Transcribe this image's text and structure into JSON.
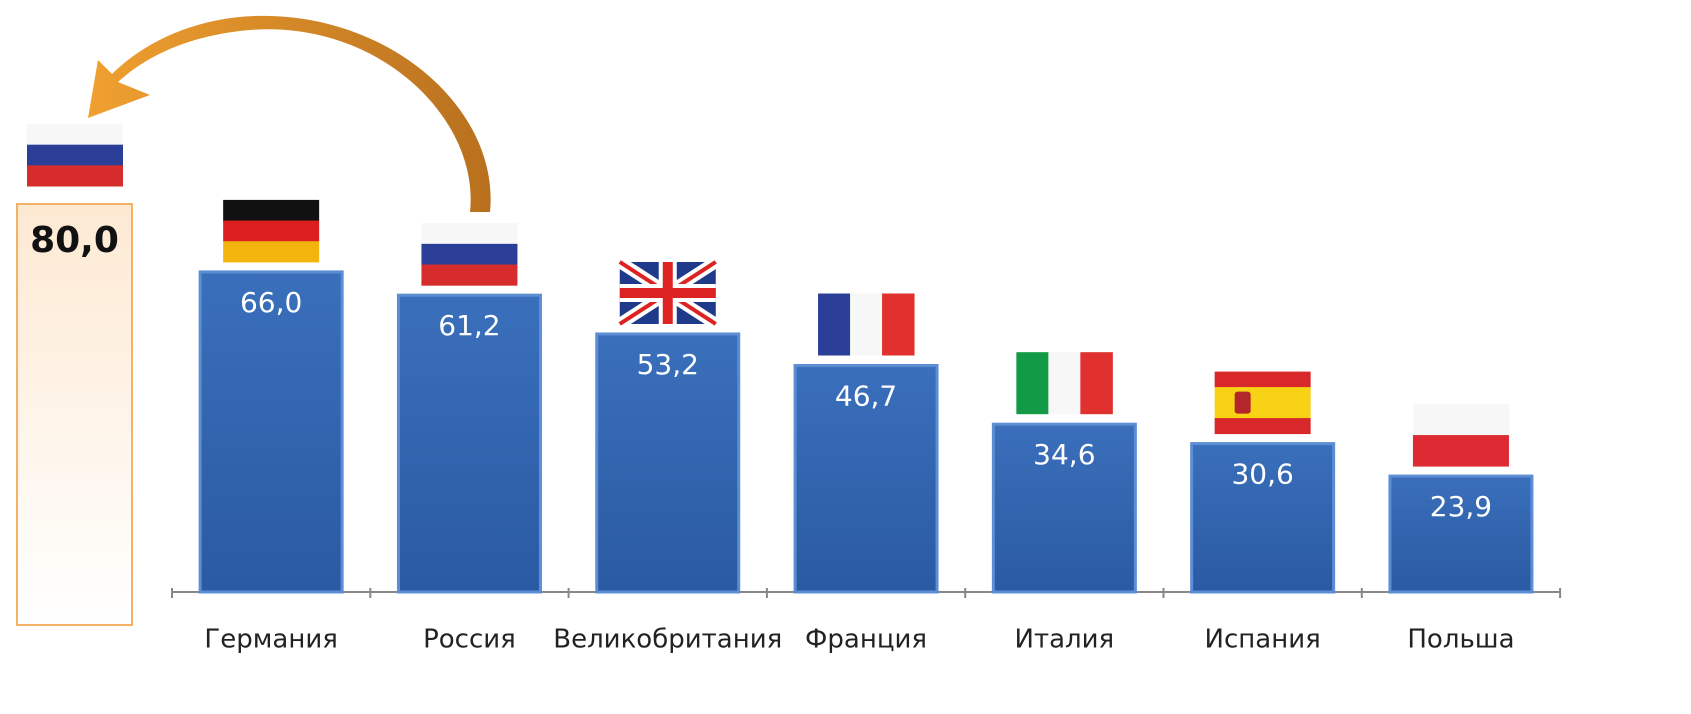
{
  "chart_data": {
    "type": "bar",
    "categories": [
      "Германия",
      "Россия",
      "Великобритания",
      "Франция",
      "Италия",
      "Испания",
      "Польша"
    ],
    "values": [
      66.0,
      61.2,
      53.2,
      46.7,
      34.6,
      30.6,
      23.9
    ],
    "value_labels": [
      "66,0",
      "61,2",
      "53,2",
      "46,7",
      "34,6",
      "30,6",
      "23,9"
    ],
    "color": "#3467b3",
    "ylim": [
      0,
      100
    ],
    "highlight": {
      "value": 80,
      "value_label": "80,0"
    }
  }
}
